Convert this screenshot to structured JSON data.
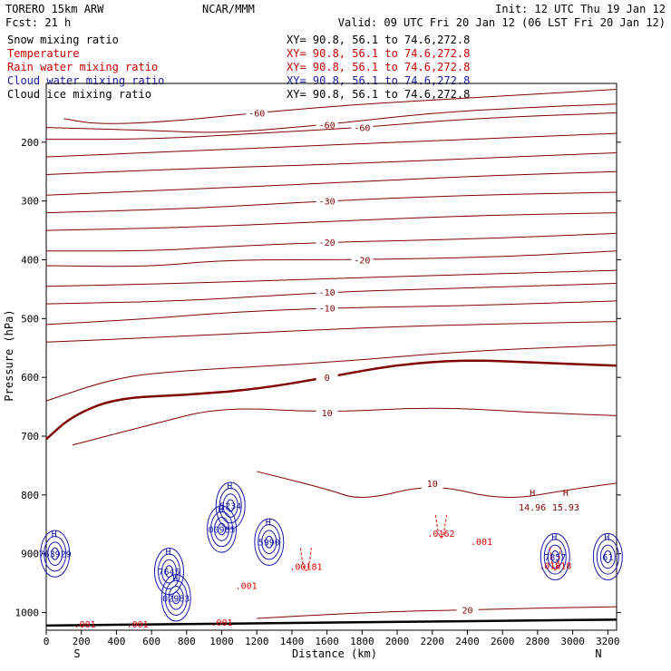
{
  "header": {
    "model": "TORERO  15km ARW",
    "center": "NCAR/MMM",
    "init": "Init: 12 UTC Thu 19 Jan 12",
    "fcst": "Fcst:    21 h",
    "valid": "Valid: 09 UTC Fri 20 Jan 12 (06 LST Fri 20 Jan 12)"
  },
  "fields": [
    {
      "name": "Snow mixing ratio",
      "xy": "XY=  90.8, 56.1 to  74.6,272.8",
      "color": "#000000"
    },
    {
      "name": "Temperature",
      "xy": "XY=  90.8, 56.1 to  74.6,272.8",
      "color": "#cc0000"
    },
    {
      "name": "Rain water mixing ratio",
      "xy": "XY=  90.8, 56.1 to  74.6,272.8",
      "color": "#cc0000"
    },
    {
      "name": "Cloud water mixing ratio",
      "xy": "XY=  90.8, 56.1 to  74.6,272.8",
      "color": "#1a1aaa"
    },
    {
      "name": "Cloud ice mixing ratio",
      "xy": "XY=  90.8, 56.1 to  74.6,272.8",
      "color": "#000000"
    }
  ],
  "colors": {
    "temperature": "#800000",
    "rain": "#dd0000",
    "cloud_water": "#1a1aaa",
    "ground": "#000000"
  },
  "chart_data": {
    "type": "line",
    "xlabel": "Distance (km)",
    "ylabel": "Pressure (hPa)",
    "xlim": [
      0,
      3250
    ],
    "ylim": [
      1030,
      100
    ],
    "x_ticks": [
      0,
      200,
      400,
      600,
      800,
      1000,
      1200,
      1400,
      1600,
      1800,
      2000,
      2200,
      2400,
      2600,
      2800,
      3000,
      3200
    ],
    "y_ticks": [
      200,
      300,
      400,
      500,
      600,
      700,
      800,
      900,
      1000
    ],
    "x_ends": {
      "left": "S",
      "right": "N"
    },
    "temperature_isotherms": [
      {
        "label": "-60",
        "points": [
          [
            100,
            160
          ],
          [
            300,
            170
          ],
          [
            700,
            165
          ],
          [
            1200,
            150
          ],
          [
            1800,
            135
          ],
          [
            2400,
            125
          ],
          [
            3250,
            110
          ]
        ]
      },
      {
        "label": "-60",
        "points": [
          [
            0,
            175
          ],
          [
            600,
            180
          ],
          [
            1000,
            185
          ],
          [
            1600,
            170
          ],
          [
            2200,
            150
          ],
          [
            2800,
            140
          ],
          [
            3250,
            135
          ]
        ]
      },
      {
        "label": "-60",
        "points": [
          [
            0,
            195
          ],
          [
            600,
            195
          ],
          [
            1200,
            185
          ],
          [
            1800,
            175
          ],
          [
            2400,
            160
          ],
          [
            3250,
            150
          ]
        ]
      },
      {
        "label": "",
        "points": [
          [
            0,
            225
          ],
          [
            800,
            215
          ],
          [
            1600,
            205
          ],
          [
            2400,
            195
          ],
          [
            3250,
            185
          ]
        ]
      },
      {
        "label": "",
        "points": [
          [
            0,
            255
          ],
          [
            800,
            245
          ],
          [
            1600,
            238
          ],
          [
            2400,
            228
          ],
          [
            3250,
            218
          ]
        ]
      },
      {
        "label": "",
        "points": [
          [
            0,
            290
          ],
          [
            800,
            280
          ],
          [
            1600,
            270
          ],
          [
            2400,
            258
          ],
          [
            3250,
            250
          ]
        ]
      },
      {
        "label": "-30",
        "points": [
          [
            0,
            320
          ],
          [
            600,
            315
          ],
          [
            1000,
            310
          ],
          [
            1600,
            300
          ],
          [
            2400,
            290
          ],
          [
            3250,
            285
          ]
        ]
      },
      {
        "label": "",
        "points": [
          [
            0,
            350
          ],
          [
            800,
            345
          ],
          [
            1600,
            335
          ],
          [
            2400,
            325
          ],
          [
            3250,
            320
          ]
        ]
      },
      {
        "label": "-20",
        "points": [
          [
            0,
            385
          ],
          [
            600,
            385
          ],
          [
            1000,
            378
          ],
          [
            1600,
            370
          ],
          [
            2400,
            365
          ],
          [
            3250,
            355
          ]
        ]
      },
      {
        "label": "-20",
        "points": [
          [
            0,
            410
          ],
          [
            600,
            412
          ],
          [
            1000,
            400
          ],
          [
            1800,
            400
          ],
          [
            2600,
            395
          ],
          [
            3250,
            385
          ]
        ]
      },
      {
        "label": "",
        "points": [
          [
            0,
            445
          ],
          [
            800,
            440
          ],
          [
            1600,
            432
          ],
          [
            2400,
            425
          ],
          [
            3250,
            418
          ]
        ]
      },
      {
        "label": "-10",
        "points": [
          [
            0,
            475
          ],
          [
            800,
            470
          ],
          [
            1600,
            455
          ],
          [
            2400,
            448
          ],
          [
            3250,
            440
          ]
        ]
      },
      {
        "label": "-10",
        "points": [
          [
            0,
            510
          ],
          [
            600,
            500
          ],
          [
            1000,
            490
          ],
          [
            1600,
            482
          ],
          [
            2400,
            478
          ],
          [
            3250,
            470
          ]
        ]
      },
      {
        "label": "",
        "points": [
          [
            0,
            540
          ],
          [
            800,
            530
          ],
          [
            1600,
            518
          ],
          [
            2400,
            510
          ],
          [
            3250,
            505
          ]
        ]
      },
      {
        "label": "0",
        "points": [
          [
            0,
            705
          ],
          [
            150,
            665
          ],
          [
            400,
            635
          ],
          [
            800,
            630
          ],
          [
            1200,
            620
          ],
          [
            1600,
            600
          ],
          [
            2000,
            578
          ],
          [
            2400,
            570
          ],
          [
            2800,
            575
          ],
          [
            3250,
            580
          ]
        ],
        "bold": true
      },
      {
        "label": "",
        "points": [
          [
            0,
            640
          ],
          [
            400,
            600
          ],
          [
            800,
            588
          ],
          [
            1600,
            575
          ],
          [
            2400,
            555
          ],
          [
            3250,
            545
          ]
        ]
      },
      {
        "label": "10",
        "points": [
          [
            150,
            715
          ],
          [
            600,
            680
          ],
          [
            1000,
            650
          ],
          [
            1600,
            660
          ],
          [
            2200,
            650
          ],
          [
            2800,
            660
          ],
          [
            3250,
            665
          ]
        ]
      },
      {
        "label": "10",
        "points": [
          [
            1200,
            760
          ],
          [
            1600,
            790
          ],
          [
            1800,
            810
          ],
          [
            2200,
            780
          ],
          [
            2600,
            810
          ],
          [
            3000,
            790
          ],
          [
            3250,
            780
          ]
        ]
      },
      {
        "label": "20",
        "points": [
          [
            1200,
            1010
          ],
          [
            1800,
            1000
          ],
          [
            2400,
            995
          ],
          [
            3250,
            990
          ]
        ]
      }
    ],
    "cloud_features": [
      {
        "label": "763929",
        "x": 50,
        "p": 900,
        "type": "cloud"
      },
      {
        "label": "7645",
        "x": 700,
        "p": 930,
        "type": "cloud"
      },
      {
        "label": "02983",
        "x": 740,
        "p": 975,
        "type": "cloud"
      },
      {
        "label": "5234",
        "x": 1050,
        "p": 818,
        "type": "cloud"
      },
      {
        "label": "00985",
        "x": 1000,
        "p": 858,
        "type": "cloud"
      },
      {
        "label": "5990",
        "x": 1270,
        "p": 880,
        "type": "cloud"
      },
      {
        "label": ".00181",
        "x": 1480,
        "p": 921,
        "type": "rain"
      },
      {
        "label": ".0162",
        "x": 2250,
        "p": 865,
        "type": "rain"
      },
      {
        "label": "14.96",
        "x": 2770,
        "p": 820,
        "type": "max"
      },
      {
        "label": "15.93",
        "x": 2960,
        "p": 820,
        "type": "max"
      },
      {
        "label": "7857",
        "x": 2900,
        "p": 905,
        "type": "cloud"
      },
      {
        "label": ".01818",
        "x": 2900,
        "p": 920,
        "type": "rain"
      },
      {
        "label": "61",
        "x": 3200,
        "p": 905,
        "type": "cloud"
      }
    ],
    "rain_labels": [
      {
        "label": ".001",
        "x": 220,
        "p": 1025
      },
      {
        "label": ".001",
        "x": 520,
        "p": 1025
      },
      {
        "label": ".001",
        "x": 1000,
        "p": 1022
      },
      {
        "label": ".001",
        "x": 1140,
        "p": 960
      },
      {
        "label": ".001",
        "x": 2480,
        "p": 885
      }
    ]
  }
}
